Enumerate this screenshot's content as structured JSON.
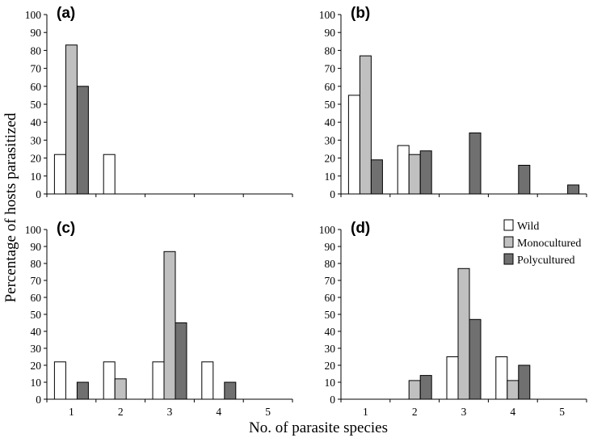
{
  "chart_data": {
    "type": "bar",
    "xlabel": "No. of parasite species",
    "ylabel": "Percentage of hosts parasitized",
    "x_ticks": [
      "1",
      "2",
      "3",
      "4",
      "5"
    ],
    "y_ticks": [
      "0",
      "10",
      "20",
      "30",
      "40",
      "50",
      "60",
      "70",
      "80",
      "90",
      "100"
    ],
    "ylim": [
      0,
      100
    ],
    "grid": false,
    "legend_placement": "right",
    "legend": [
      {
        "name": "Wild",
        "color": "#ffffff"
      },
      {
        "name": "Monocultured",
        "color": "#c0c0c0"
      },
      {
        "name": "Polycultured",
        "color": "#707070"
      }
    ],
    "panels": [
      {
        "label": "(a)",
        "categories": [
          "1",
          "2",
          "3",
          "4",
          "5"
        ],
        "series": [
          {
            "name": "Wild",
            "values": [
              22,
              22,
              0,
              0,
              0
            ]
          },
          {
            "name": "Monocultured",
            "values": [
              83,
              0,
              0,
              0,
              0
            ]
          },
          {
            "name": "Polycultured",
            "values": [
              60,
              0,
              0,
              0,
              0
            ]
          }
        ]
      },
      {
        "label": "(b)",
        "categories": [
          "1",
          "2",
          "3",
          "4",
          "5"
        ],
        "series": [
          {
            "name": "Wild",
            "values": [
              55,
              27,
              0,
              0,
              0
            ]
          },
          {
            "name": "Monocultured",
            "values": [
              77,
              22,
              0,
              0,
              0
            ]
          },
          {
            "name": "Polycultured",
            "values": [
              19,
              24,
              34,
              16,
              5
            ]
          }
        ]
      },
      {
        "label": "(c)",
        "categories": [
          "1",
          "2",
          "3",
          "4",
          "5"
        ],
        "series": [
          {
            "name": "Wild",
            "values": [
              22,
              22,
              22,
              22,
              0
            ]
          },
          {
            "name": "Monocultured",
            "values": [
              0,
              12,
              87,
              0,
              0
            ]
          },
          {
            "name": "Polycultured",
            "values": [
              10,
              0,
              45,
              10,
              0
            ]
          }
        ]
      },
      {
        "label": "(d)",
        "categories": [
          "1",
          "2",
          "3",
          "4",
          "5"
        ],
        "series": [
          {
            "name": "Wild",
            "values": [
              0,
              0,
              25,
              25,
              0
            ]
          },
          {
            "name": "Monocultured",
            "values": [
              0,
              11,
              77,
              11,
              0
            ]
          },
          {
            "name": "Polycultured",
            "values": [
              0,
              14,
              47,
              20,
              0
            ]
          }
        ]
      }
    ]
  }
}
